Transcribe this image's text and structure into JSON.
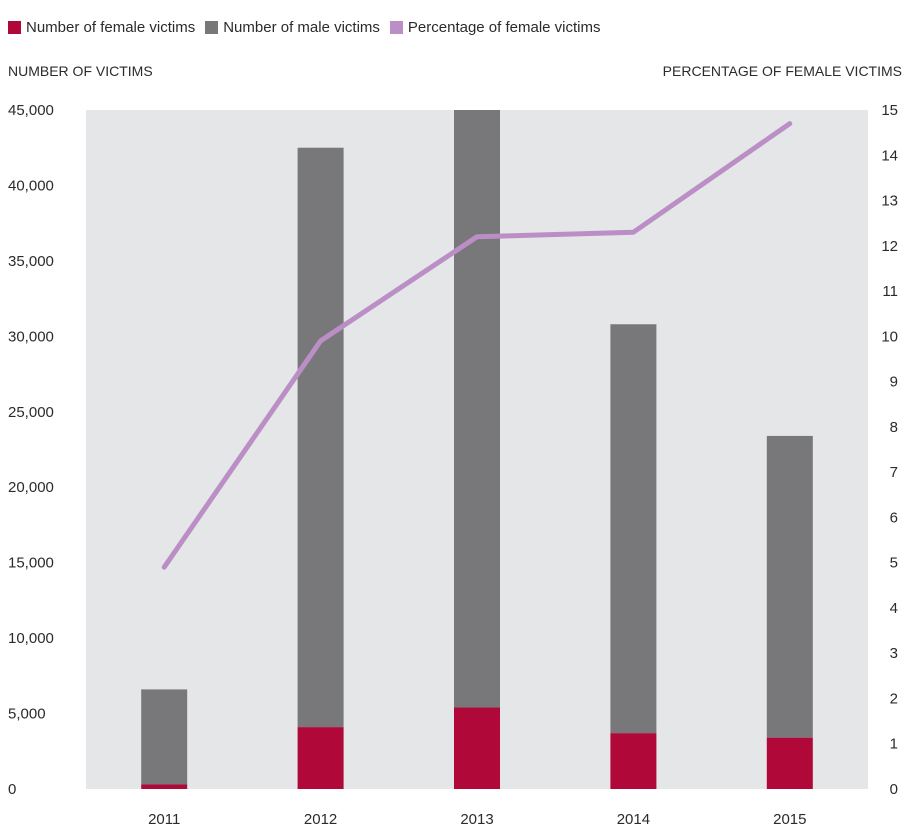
{
  "legend": {
    "female": "Number of female victims",
    "male": "Number of male victims",
    "percentage": "Percentage of female victims"
  },
  "colors": {
    "female": "#b00838",
    "male": "#78787a",
    "percentage": "#bb8fc6",
    "plot_background": "#e5e6e8"
  },
  "chart_data": {
    "type": "bar",
    "stacked": true,
    "categories": [
      "2011",
      "2012",
      "2013",
      "2014",
      "2015"
    ],
    "series": [
      {
        "name": "Number of female victims",
        "type": "bar",
        "axis": "left",
        "values": [
          300,
          4100,
          5400,
          3700,
          3400
        ]
      },
      {
        "name": "Number of male victims",
        "type": "bar",
        "axis": "left",
        "values": [
          6300,
          38400,
          39600,
          27100,
          20000
        ]
      },
      {
        "name": "Percentage of female victims",
        "type": "line",
        "axis": "right",
        "values": [
          4.9,
          9.9,
          12.2,
          12.3,
          14.7
        ]
      }
    ],
    "ylabel": "NUMBER OF VICTIMS",
    "y2label": "PERCENTAGE OF FEMALE VICTIMS",
    "ylim": [
      0,
      45000
    ],
    "y2lim": [
      0,
      15
    ],
    "yticks": [
      "0",
      "5,000",
      "10,000",
      "15,000",
      "20,000",
      "25,000",
      "30,000",
      "35,000",
      "40,000",
      "45,000"
    ],
    "y2ticks": [
      "0",
      "1",
      "2",
      "3",
      "4",
      "5",
      "6",
      "7",
      "8",
      "9",
      "10",
      "11",
      "12",
      "13",
      "14",
      "15"
    ],
    "grid": false,
    "legend_position": "top-left"
  }
}
